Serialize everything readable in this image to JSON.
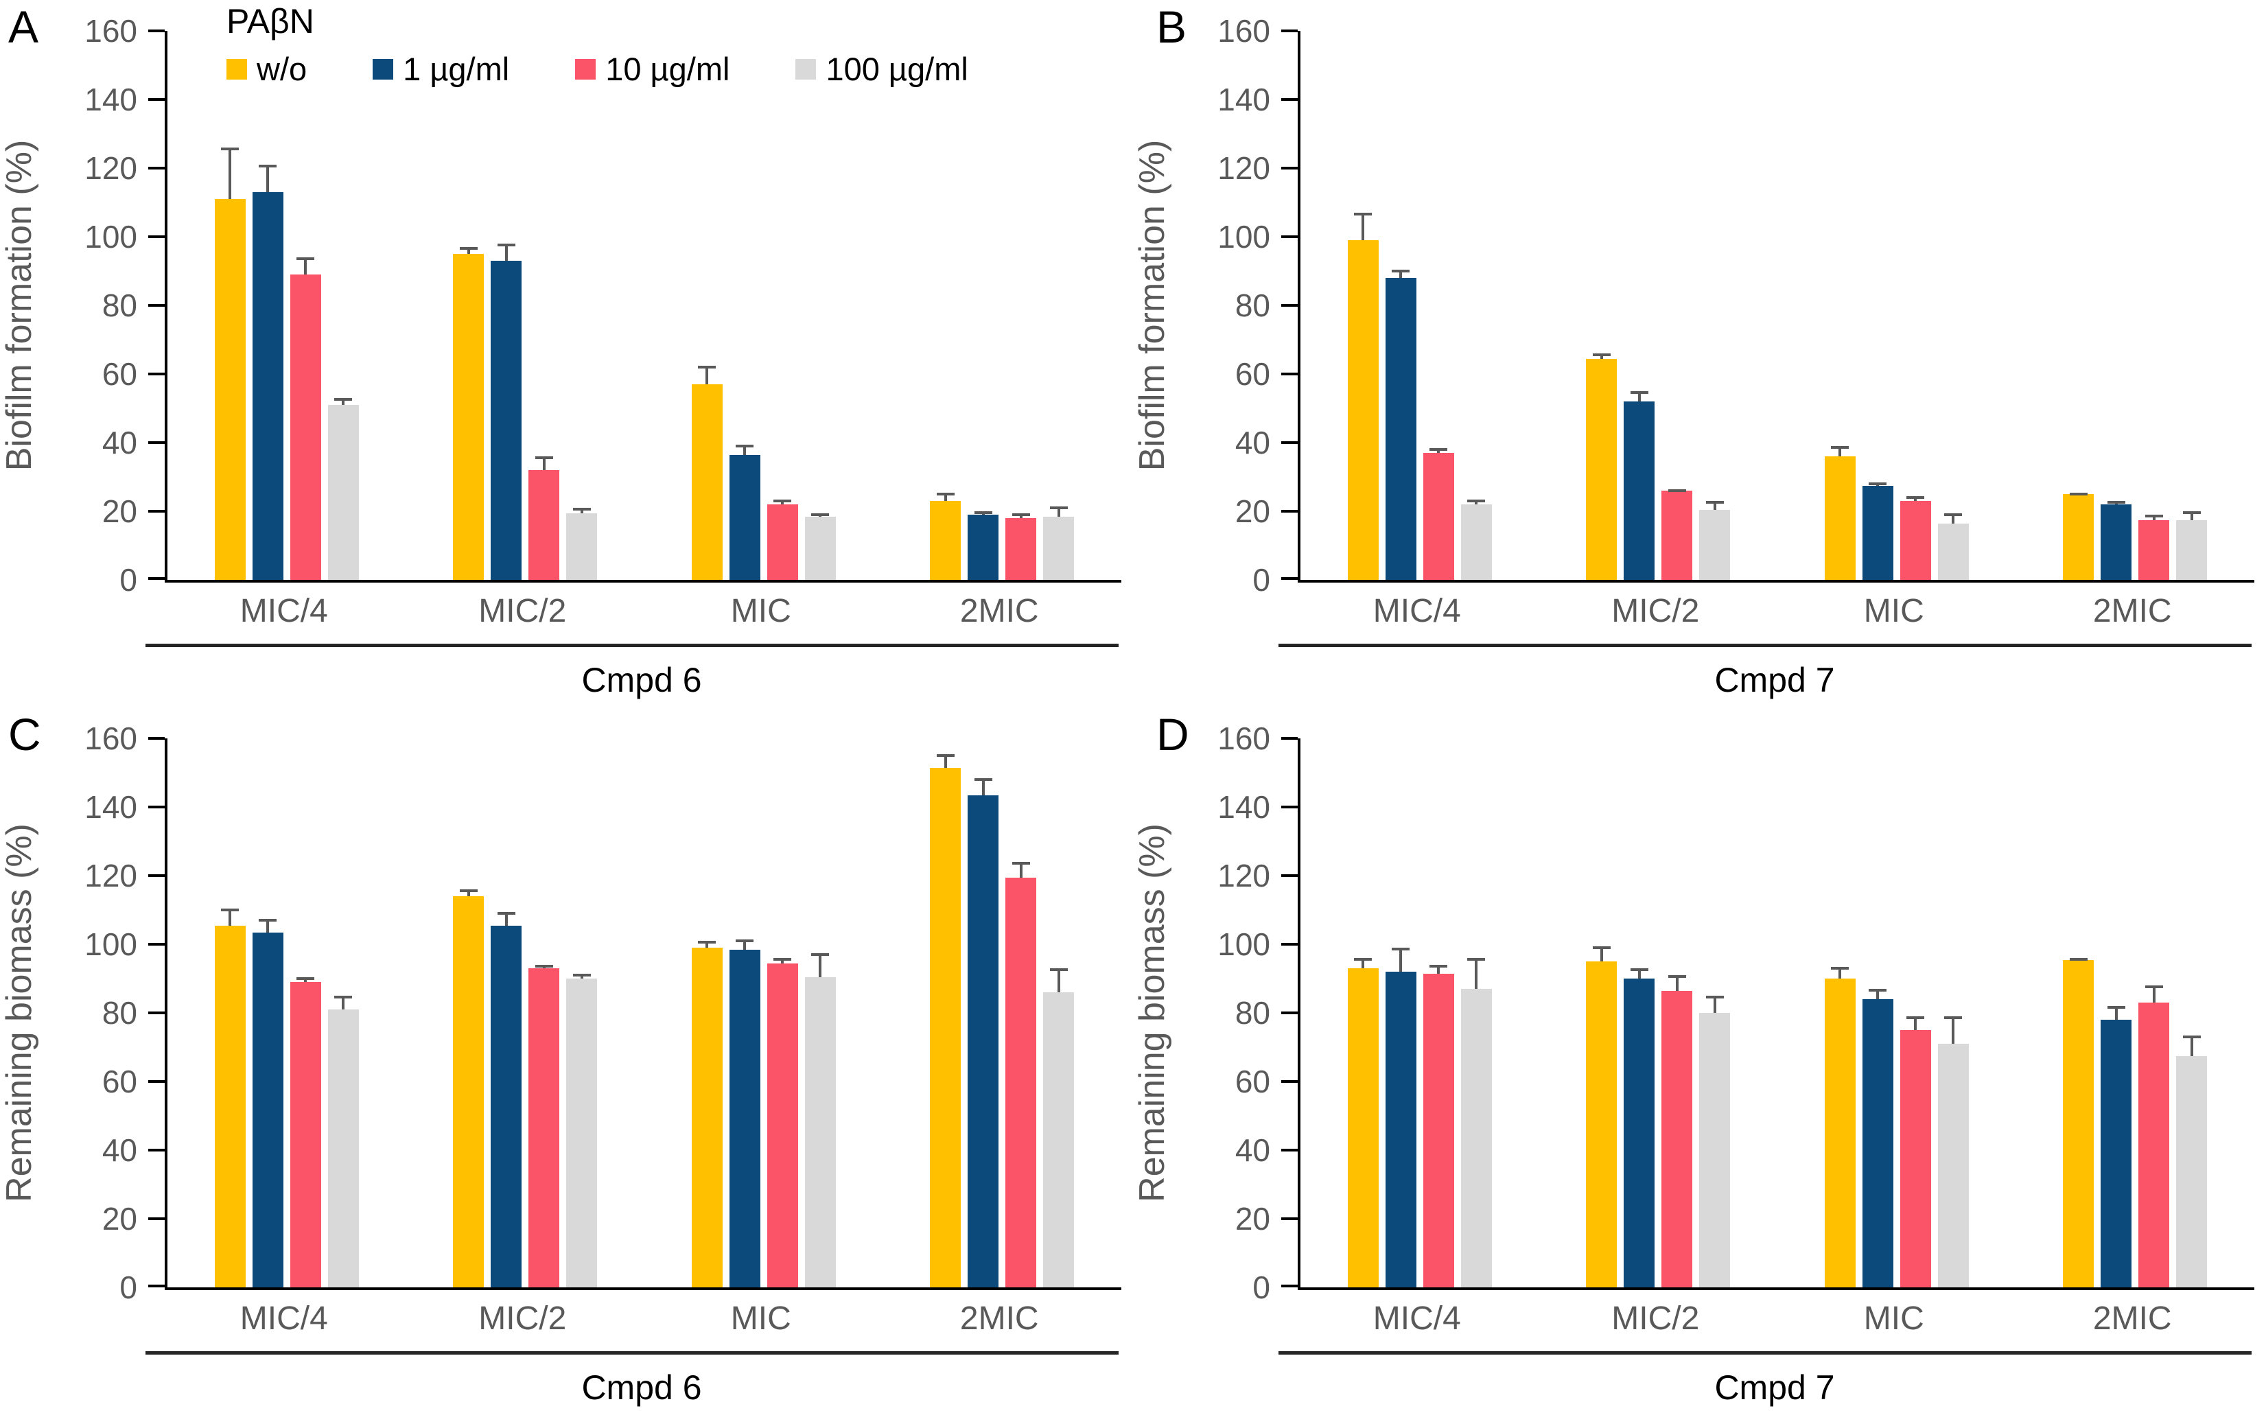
{
  "figure": {
    "background": "#ffffff",
    "legend": {
      "title": "PAβN",
      "entries": [
        {
          "label": "w/o",
          "color": "#FFC000"
        },
        {
          "label": "1 µg/ml",
          "color": "#0C4A7B"
        },
        {
          "label": "10 µg/ml",
          "color": "#FB5367"
        },
        {
          "label": "100 µg/ml",
          "color": "#D9D9D9"
        }
      ]
    },
    "colors": {
      "axis": "#000000",
      "tick_label": "#595959",
      "category_label": "#595959",
      "error_bar": "#595959",
      "separator": "#262626",
      "panel_letter": "#000000",
      "compound_label": "#000000",
      "gold": "#FFC000",
      "navy": "#0C4A7B",
      "pink": "#FB5367",
      "gray": "#D9D9D9"
    }
  },
  "chart_data": [
    {
      "panel": "A",
      "type": "bar",
      "ylabel": "Biofilm formation (%)",
      "xlabel": "Cmpd 6",
      "categories": [
        "MIC/4",
        "MIC/2",
        "MIC",
        "2MIC"
      ],
      "ylim": [
        0,
        160
      ],
      "ytick_step": 20,
      "grid": false,
      "legend_position": "top-left",
      "series": [
        {
          "name": "w/o",
          "color": "#FFC000",
          "values": [
            111,
            95,
            57,
            23
          ],
          "errors": [
            15,
            2,
            5.5,
            2.5
          ]
        },
        {
          "name": "1 µg/ml",
          "color": "#0C4A7B",
          "values": [
            113,
            93,
            36.5,
            19
          ],
          "errors": [
            8,
            5,
            3,
            1
          ]
        },
        {
          "name": "10 µg/ml",
          "color": "#FB5367",
          "values": [
            89,
            32,
            22,
            18
          ],
          "errors": [
            5,
            4,
            1.5,
            1.5
          ]
        },
        {
          "name": "100 µg/ml",
          "color": "#D9D9D9",
          "values": [
            51,
            19.5,
            18.5,
            18.5
          ],
          "errors": [
            2,
            1.5,
            1,
            3
          ]
        }
      ]
    },
    {
      "panel": "B",
      "type": "bar",
      "ylabel": "Biofilm formation (%)",
      "xlabel": "Cmpd 7",
      "categories": [
        "MIC/4",
        "MIC/2",
        "MIC",
        "2MIC"
      ],
      "ylim": [
        0,
        160
      ],
      "ytick_step": 20,
      "grid": false,
      "legend_position": "none",
      "series": [
        {
          "name": "w/o",
          "color": "#FFC000",
          "values": [
            99,
            64.5,
            36,
            25
          ],
          "errors": [
            8,
            1.5,
            3,
            0.5
          ]
        },
        {
          "name": "1 µg/ml",
          "color": "#0C4A7B",
          "values": [
            88,
            52,
            27.5,
            22
          ],
          "errors": [
            2.5,
            3,
            1,
            1
          ]
        },
        {
          "name": "10 µg/ml",
          "color": "#FB5367",
          "values": [
            37,
            26,
            23,
            17.5
          ],
          "errors": [
            1.5,
            0.5,
            1.5,
            1.5
          ]
        },
        {
          "name": "100 µg/ml",
          "color": "#D9D9D9",
          "values": [
            22,
            20.5,
            16.5,
            17.5
          ],
          "errors": [
            1.5,
            2.5,
            3,
            2.5
          ]
        }
      ]
    },
    {
      "panel": "C",
      "type": "bar",
      "ylabel": "Remaining biomass (%)",
      "xlabel": "Cmpd 6",
      "categories": [
        "MIC/4",
        "MIC/2",
        "MIC",
        "2MIC"
      ],
      "ylim": [
        0,
        160
      ],
      "ytick_step": 20,
      "grid": false,
      "legend_position": "none",
      "series": [
        {
          "name": "w/o",
          "color": "#FFC000",
          "values": [
            105.5,
            114,
            99,
            151.5
          ],
          "errors": [
            5,
            2,
            2,
            4
          ]
        },
        {
          "name": "1 µg/ml",
          "color": "#0C4A7B",
          "values": [
            103.5,
            105.5,
            98.5,
            143.5
          ],
          "errors": [
            4,
            4,
            3,
            5
          ]
        },
        {
          "name": "10 µg/ml",
          "color": "#FB5367",
          "values": [
            89,
            93,
            94.5,
            119.5
          ],
          "errors": [
            1.5,
            1,
            1.5,
            4.5
          ]
        },
        {
          "name": "100 µg/ml",
          "color": "#D9D9D9",
          "values": [
            81,
            90,
            90.5,
            86
          ],
          "errors": [
            4,
            1.5,
            7,
            7
          ]
        }
      ]
    },
    {
      "panel": "D",
      "type": "bar",
      "ylabel": "Remaining biomass (%)",
      "xlabel": "Cmpd 7",
      "categories": [
        "MIC/4",
        "MIC/2",
        "MIC",
        "2MIC"
      ],
      "ylim": [
        0,
        160
      ],
      "ytick_step": 20,
      "grid": false,
      "legend_position": "none",
      "series": [
        {
          "name": "w/o",
          "color": "#FFC000",
          "values": [
            93,
            95,
            90,
            95.5
          ],
          "errors": [
            3,
            4.5,
            3.5,
            0.5
          ]
        },
        {
          "name": "1 µg/ml",
          "color": "#0C4A7B",
          "values": [
            92,
            90,
            84,
            78
          ],
          "errors": [
            7,
            3,
            3,
            4
          ]
        },
        {
          "name": "10 µg/ml",
          "color": "#FB5367",
          "values": [
            91.5,
            86.5,
            75,
            83
          ],
          "errors": [
            2.5,
            4.5,
            4,
            5
          ]
        },
        {
          "name": "100 µg/ml",
          "color": "#D9D9D9",
          "values": [
            87,
            80,
            71,
            67.5
          ],
          "errors": [
            9,
            5,
            8,
            6
          ]
        }
      ]
    }
  ]
}
